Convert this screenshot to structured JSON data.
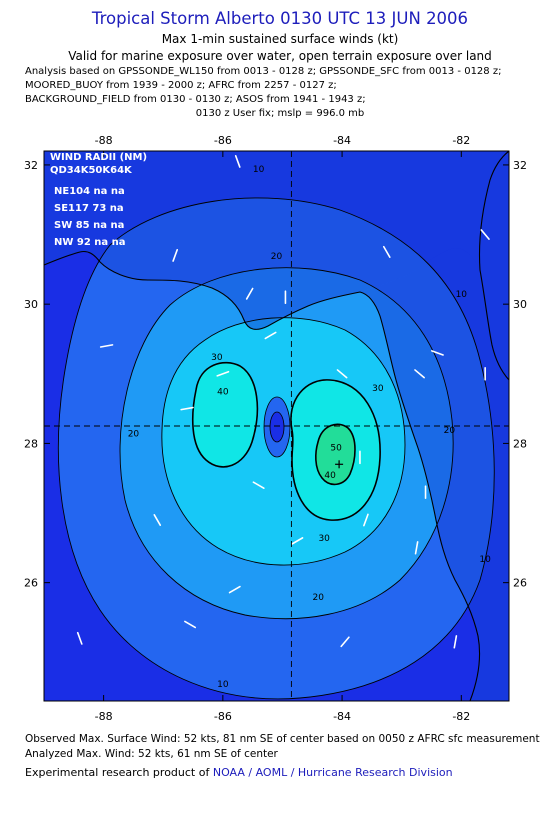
{
  "header": {
    "title": "Tropical Storm Alberto 0130 UTC 13 JUN 2006",
    "subtitle1": "Max 1-min sustained surface winds (kt)",
    "subtitle2": "Valid for marine exposure over water, open terrain exposure over land",
    "info1": "Analysis based on  GPSSONDE_WL150 from 0013 - 0128 z;  GPSSONDE_SFC from 0013 - 0128 z;",
    "info2": "MOORED_BUOY from 1939 - 2000 z;  AFRC from 2257 - 0127 z;",
    "info3": "BACKGROUND_FIELD from 0130 - 0130 z;  ASOS from 1941 - 1943 z;",
    "info4": "0130 z User fix; mslp = 996.0 mb"
  },
  "wind_radii": {
    "title": "WIND RADII (NM)",
    "header": "QD34K50K64K",
    "rows": [
      "NE104 na  na",
      "SE117 73  na",
      "SW 85  na  na",
      "NW 92  na  na"
    ]
  },
  "footer": {
    "line1": "Observed Max. Surface Wind: 52 kts, 81 nm SE of center based on 0050 z AFRC sfc measurement",
    "line2": "Analyzed Max. Wind: 52 kts, 61 nm SE of center",
    "line3_prefix": "Experimental research product of ",
    "line3_link": "NOAA / AOML / Hurricane Research Division"
  },
  "colors": {
    "level_lt10": "#1a2ee6",
    "level_10_20": "#2466f0",
    "level_20_30": "#1f9af5",
    "level_30_40": "#17c8f7",
    "level_40_50": "#10e6e6",
    "level_50_plus": "#22dd99",
    "land": "#1544d8",
    "axis_label": "#000000"
  },
  "chart_data": {
    "type": "contour",
    "xlim": [
      -89,
      -81.2
    ],
    "ylim": [
      24.3,
      32.2
    ],
    "x_ticks": [
      -88,
      -86,
      -84,
      -82
    ],
    "x_tick_labels": [
      "-88",
      "-86",
      "-84",
      "-82"
    ],
    "y_ticks": [
      26,
      28,
      30,
      32
    ],
    "y_tick_labels": [
      "26",
      "28",
      "30",
      "32"
    ],
    "storm_center": {
      "lon": -84.85,
      "lat": 28.25
    },
    "max_wind_location": {
      "lon": -84.05,
      "lat": 27.7
    },
    "contour_levels": [
      10,
      20,
      30,
      40,
      50
    ],
    "contour_labels": [
      {
        "text": "10",
        "lon": -85.4,
        "lat": 31.9
      },
      {
        "text": "10",
        "lon": -82.0,
        "lat": 30.1
      },
      {
        "text": "10",
        "lon": -81.6,
        "lat": 26.3
      },
      {
        "text": "10",
        "lon": -86.0,
        "lat": 24.5
      },
      {
        "text": "20",
        "lon": -85.1,
        "lat": 30.65
      },
      {
        "text": "20",
        "lon": -87.5,
        "lat": 28.1
      },
      {
        "text": "20",
        "lon": -82.2,
        "lat": 28.15
      },
      {
        "text": "20",
        "lon": -84.4,
        "lat": 25.75
      },
      {
        "text": "30",
        "lon": -86.1,
        "lat": 29.2
      },
      {
        "text": "30",
        "lon": -83.4,
        "lat": 28.75
      },
      {
        "text": "30",
        "lon": -84.3,
        "lat": 26.6
      },
      {
        "text": "40",
        "lon": -86.0,
        "lat": 28.7
      },
      {
        "text": "40",
        "lon": -84.2,
        "lat": 27.5
      },
      {
        "text": "50",
        "lon": -84.1,
        "lat": 27.9
      }
    ],
    "wind_barbs": [
      {
        "lon": -85.75,
        "lat": 32.05,
        "dir": 160
      },
      {
        "lon": -86.8,
        "lat": 30.7,
        "dir": 200
      },
      {
        "lon": -85.55,
        "lat": 30.15,
        "dir": 210
      },
      {
        "lon": -83.25,
        "lat": 30.75,
        "dir": 150
      },
      {
        "lon": -81.6,
        "lat": 31.0,
        "dir": 140
      },
      {
        "lon": -82.7,
        "lat": 29.0,
        "dir": 130
      },
      {
        "lon": -86.0,
        "lat": 29.0,
        "dir": 250
      },
      {
        "lon": -85.2,
        "lat": 29.55,
        "dir": 240
      },
      {
        "lon": -87.95,
        "lat": 29.4,
        "dir": 260
      },
      {
        "lon": -84.0,
        "lat": 29.0,
        "dir": 130
      },
      {
        "lon": -84.95,
        "lat": 30.1,
        "dir": 180
      },
      {
        "lon": -82.4,
        "lat": 29.3,
        "dir": 110
      },
      {
        "lon": -86.6,
        "lat": 28.5,
        "dir": 260
      },
      {
        "lon": -85.4,
        "lat": 27.4,
        "dir": 300
      },
      {
        "lon": -83.7,
        "lat": 27.8,
        "dir": 0
      },
      {
        "lon": -83.6,
        "lat": 26.9,
        "dir": 20
      },
      {
        "lon": -82.75,
        "lat": 26.5,
        "dir": 10
      },
      {
        "lon": -82.6,
        "lat": 27.3,
        "dir": 0
      },
      {
        "lon": -84.75,
        "lat": 26.6,
        "dir": 60
      },
      {
        "lon": -87.1,
        "lat": 26.9,
        "dir": 330
      },
      {
        "lon": -85.8,
        "lat": 25.9,
        "dir": 60
      },
      {
        "lon": -86.55,
        "lat": 25.4,
        "dir": 300
      },
      {
        "lon": -83.95,
        "lat": 25.15,
        "dir": 40
      },
      {
        "lon": -82.1,
        "lat": 25.15,
        "dir": 10
      },
      {
        "lon": -88.4,
        "lat": 25.2,
        "dir": 340
      },
      {
        "lon": -81.6,
        "lat": 29.0,
        "dir": 0
      }
    ]
  }
}
